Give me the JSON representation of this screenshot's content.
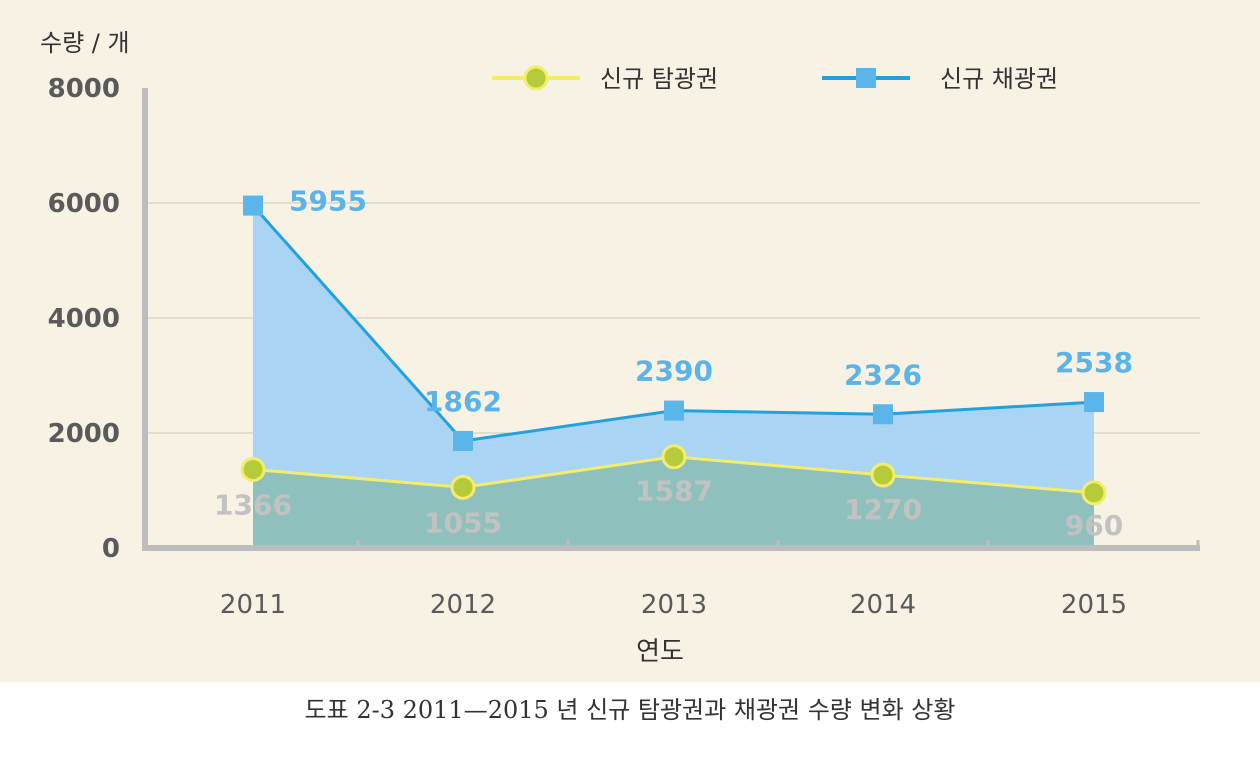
{
  "chart_data": {
    "type": "area",
    "ylabel": "수량 / 개",
    "xlabel": "연도",
    "categories": [
      "2011",
      "2012",
      "2013",
      "2014",
      "2015"
    ],
    "ylim": [
      0,
      8000
    ],
    "yticks": [
      "0",
      "2000",
      "4000",
      "6000",
      "8000"
    ],
    "grid": true,
    "legend_position": "top-right",
    "series": [
      {
        "name": "신규 탐광권",
        "values": [
          1366,
          1055,
          1587,
          1270,
          960
        ],
        "labels": [
          "1366",
          "1055",
          "1587",
          "1270",
          "960"
        ],
        "line_color": "#f3ee6a",
        "marker_color": "#b6cb3c",
        "fill_color": "#8ec1bd",
        "label_color": "#c2c2c2",
        "marker": "circle"
      },
      {
        "name": "신규 채광권",
        "values": [
          5955,
          1862,
          2390,
          2326,
          2538
        ],
        "labels": [
          "5955",
          "1862",
          "2390",
          "2326",
          "2538"
        ],
        "line_color": "#23a1df",
        "marker_color": "#59b5ea",
        "fill_color": "#a9d4f4",
        "label_color": "#5ab4ea",
        "marker": "square"
      }
    ]
  },
  "caption": "도표 2-3 2011—2015 년 신규 탐광권과 채광권 수량 변화 상황"
}
